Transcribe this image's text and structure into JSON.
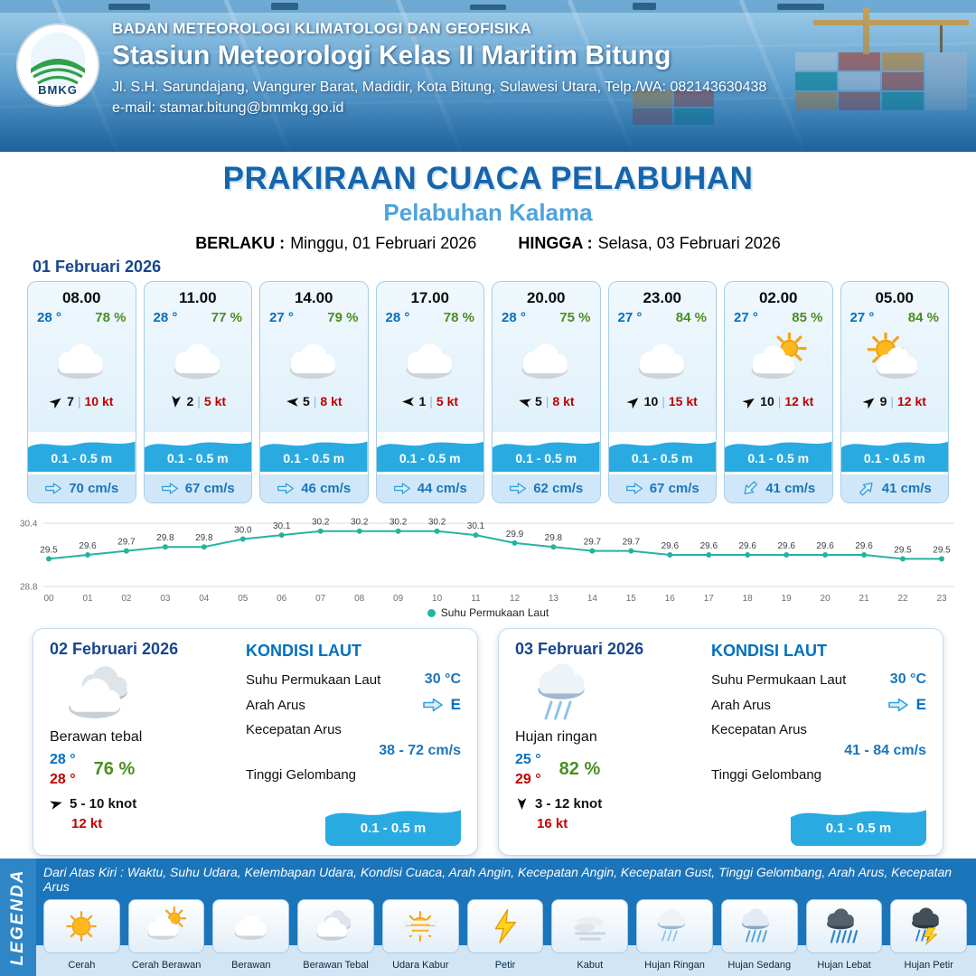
{
  "header": {
    "org": "BADAN METEOROLOGI KLIMATOLOGI DAN GEOFISIKA",
    "station": "Stasiun Meteorologi Kelas II Maritim Bitung",
    "address": "Jl. S.H. Sarundajang, Wangurer Barat, Madidir, Kota Bitung, Sulawesi Utara, Telp./WA: 082143630438",
    "email": "e-mail: stamar.bitung@bmmkg.go.id",
    "logo_text": "BMKG"
  },
  "title": {
    "main": "PRAKIRAAN CUACA PELABUHAN",
    "subtitle": "Pelabuhan Kalama",
    "berlaku_label": "BERLAKU :",
    "berlaku_value": "Minggu, 01 Februari 2026",
    "hingga_label": "HINGGA :",
    "hingga_value": "Selasa, 03 Februari 2026"
  },
  "day1": {
    "date": "01 Februari 2026",
    "cards": [
      {
        "time": "08.00",
        "temp": "28 °",
        "humidity": "78 %",
        "icon": "cloud",
        "wind_dir_deg": -38,
        "wind_speed": "7",
        "gust": "10 kt",
        "wave": "0.1 - 0.5 m",
        "current": "70 cm/s",
        "current_dir_deg": 0
      },
      {
        "time": "11.00",
        "temp": "28 °",
        "humidity": "77 %",
        "icon": "cloud",
        "wind_dir_deg": 95,
        "wind_speed": "2",
        "gust": "5 kt",
        "wave": "0.1 - 0.5 m",
        "current": "67 cm/s",
        "current_dir_deg": 0
      },
      {
        "time": "14.00",
        "temp": "27 °",
        "humidity": "79 %",
        "icon": "cloud",
        "wind_dir_deg": 185,
        "wind_speed": "5",
        "gust": "8 kt",
        "wave": "0.1 - 0.5 m",
        "current": "46 cm/s",
        "current_dir_deg": 0
      },
      {
        "time": "17.00",
        "temp": "28 °",
        "humidity": "78 %",
        "icon": "cloud",
        "wind_dir_deg": 180,
        "wind_speed": "1",
        "gust": "5 kt",
        "wave": "0.1 - 0.5 m",
        "current": "44 cm/s",
        "current_dir_deg": 0
      },
      {
        "time": "20.00",
        "temp": "28 °",
        "humidity": "75 %",
        "icon": "cloud",
        "wind_dir_deg": 195,
        "wind_speed": "5",
        "gust": "8 kt",
        "wave": "0.1 - 0.5 m",
        "current": "62 cm/s",
        "current_dir_deg": 0
      },
      {
        "time": "23.00",
        "temp": "27 °",
        "humidity": "84 %",
        "icon": "cloud",
        "wind_dir_deg": -42,
        "wind_speed": "10",
        "gust": "15 kt",
        "wave": "0.1 - 0.5 m",
        "current": "67 cm/s",
        "current_dir_deg": 0
      },
      {
        "time": "02.00",
        "temp": "27 °",
        "humidity": "85 %",
        "icon": "partly",
        "wind_dir_deg": -35,
        "wind_speed": "10",
        "gust": "12 kt",
        "wave": "0.1 - 0.5 m",
        "current": "41 cm/s",
        "current_dir_deg": 135
      },
      {
        "time": "05.00",
        "temp": "27 °",
        "humidity": "84 %",
        "icon": "partly_sun",
        "wind_dir_deg": -40,
        "wind_speed": "9",
        "gust": "12 kt",
        "wave": "0.1 - 0.5 m",
        "current": "41 cm/s",
        "current_dir_deg": -45
      }
    ]
  },
  "chart_data": {
    "type": "line",
    "series_name": "Suhu Permukaan Laut",
    "x": [
      "00",
      "01",
      "02",
      "03",
      "04",
      "05",
      "06",
      "07",
      "08",
      "09",
      "10",
      "11",
      "12",
      "13",
      "14",
      "15",
      "16",
      "17",
      "18",
      "19",
      "20",
      "21",
      "22",
      "23"
    ],
    "values": [
      29.5,
      29.6,
      29.7,
      29.8,
      29.8,
      30.0,
      30.1,
      30.2,
      30.2,
      30.2,
      30.2,
      30.1,
      29.9,
      29.8,
      29.7,
      29.7,
      29.6,
      29.6,
      29.6,
      29.6,
      29.6,
      29.6,
      29.5,
      29.5
    ],
    "ylim": [
      28.8,
      30.4
    ],
    "yticks": [
      30.4,
      28.8
    ],
    "line_color": "#24b3a2"
  },
  "day2": {
    "date": "02 Februari 2026",
    "condition": "Berawan tebal",
    "icon": "cloud_thick",
    "temp_min": "28 °",
    "temp_max": "28 °",
    "humidity": "76 %",
    "wind": "5 - 10 knot",
    "gust": "12 kt",
    "wind_dir_deg": -15,
    "sea": {
      "title": "KONDISI LAUT",
      "sst_label": "Suhu Permukaan Laut",
      "sst_value": "30 °C",
      "arus_label": "Arah Arus",
      "arus_dir": "E",
      "arus_dir_deg": 0,
      "kecepatan_label": "Kecepatan Arus",
      "kecepatan_value": "38 - 72 cm/s",
      "gelombang_label": "Tinggi Gelombang",
      "gelombang_value": "0.1 - 0.5 m"
    }
  },
  "day3": {
    "date": "03 Februari 2026",
    "condition": "Hujan ringan",
    "icon": "rain_light",
    "temp_min": "25 °",
    "temp_max": "29 °",
    "humidity": "82 %",
    "wind": "3 - 12 knot",
    "gust": "16 kt",
    "wind_dir_deg": 90,
    "sea": {
      "title": "KONDISI LAUT",
      "sst_label": "Suhu Permukaan Laut",
      "sst_value": "30 °C",
      "arus_label": "Arah Arus",
      "arus_dir": "E",
      "arus_dir_deg": 0,
      "kecepatan_label": "Kecepatan Arus",
      "kecepatan_value": "41 - 84 cm/s",
      "gelombang_label": "Tinggi Gelombang",
      "gelombang_value": "0.1 - 0.5 m"
    }
  },
  "legend": {
    "title": "LEGENDA",
    "description": "Dari Atas Kiri : Waktu, Suhu Udara, Kelembapan Udara, Kondisi Cuaca, Arah Angin, Kecepatan Angin, Kecepatan Gust, Tinggi Gelombang, Arah Arus, Kecepatan Arus",
    "items": [
      {
        "label": "Cerah",
        "icon": "sun"
      },
      {
        "label": "Cerah Berawan",
        "icon": "partly"
      },
      {
        "label": "Berawan",
        "icon": "cloud"
      },
      {
        "label": "Berawan Tebal",
        "icon": "cloud_thick"
      },
      {
        "label": "Udara Kabur",
        "icon": "haze"
      },
      {
        "label": "Petir",
        "icon": "lightning"
      },
      {
        "label": "Kabut",
        "icon": "fog"
      },
      {
        "label": "Hujan Ringan",
        "icon": "rain_light"
      },
      {
        "label": "Hujan Sedang",
        "icon": "rain_med"
      },
      {
        "label": "Hujan Lebat",
        "icon": "rain_heavy"
      },
      {
        "label": "Hujan Petir",
        "icon": "thunderstorm"
      }
    ]
  },
  "colors": {
    "accent_blue": "#1565ad",
    "subtitle_blue": "#4da3dd",
    "temp_blue": "#0070c0",
    "temp_red": "#c00000",
    "humidity_green": "#4a8f1f",
    "wave_blue": "#29abe2",
    "current_text_blue": "#1b75bb",
    "chart_teal": "#24b3a2",
    "legend_bg": "#1b75bb",
    "date_navy": "#17468f"
  }
}
